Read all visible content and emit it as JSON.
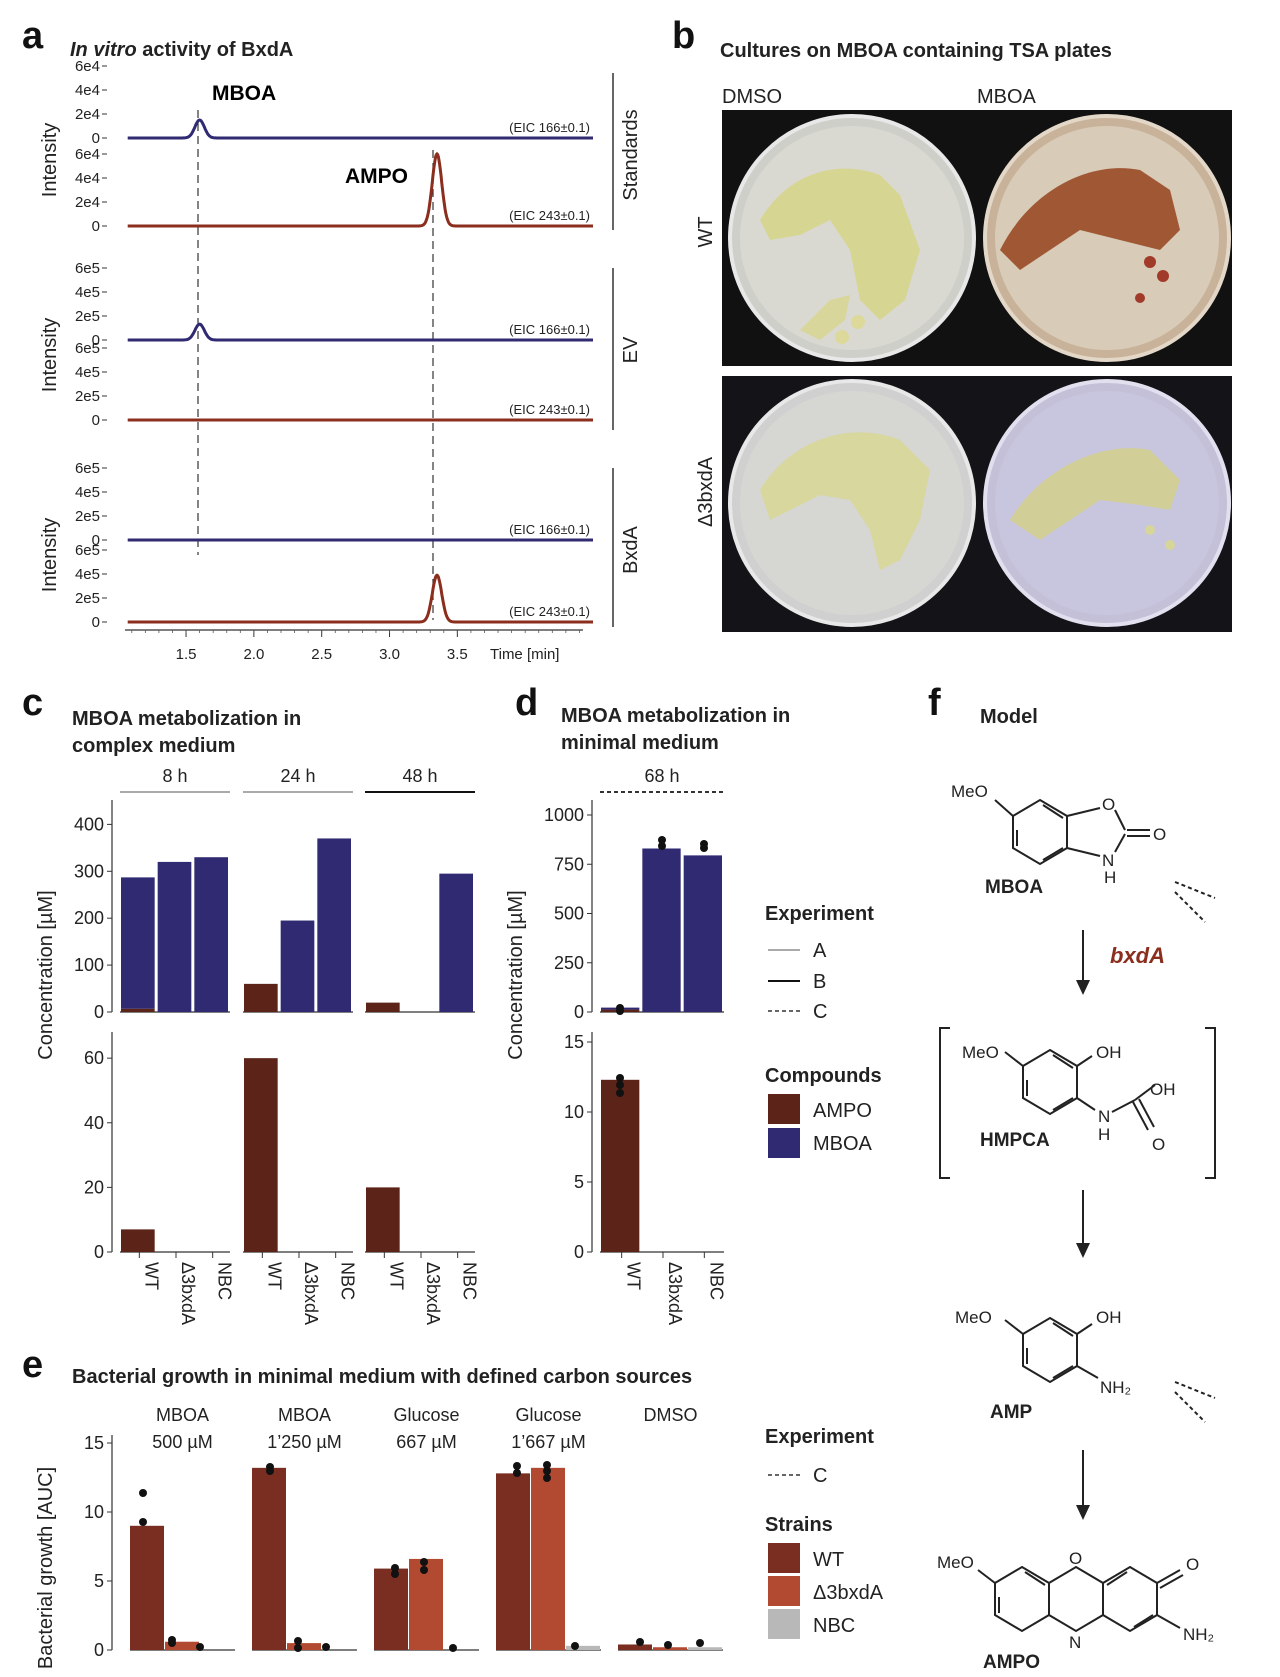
{
  "colors": {
    "mboa": "#2f2a72",
    "ampo": "#8b2e1e",
    "wt": "#7a2e22",
    "d3bxda": "#b24a32",
    "nbc": "#b8b8b8",
    "bar_ampo": "#5c2418",
    "bar_mboa": "#2f2a72"
  },
  "panel_a": {
    "label": "a",
    "title_italic": "In vitro",
    "title_rest": " activity of BxdA",
    "mboa_label": "MBOA",
    "ampo_label": "AMPO",
    "ylabel": "Intensity",
    "groups": [
      {
        "name": "Standards",
        "yticks": [
          "6e4",
          "4e4",
          "2e4",
          "0"
        ],
        "traces": [
          {
            "eic": "(EIC 166±0.1)",
            "compound": "mboa",
            "peak_time": 1.6,
            "peak_height": 0.25
          },
          {
            "eic": "(EIC 243±0.1)",
            "compound": "ampo",
            "peak_time": 3.35,
            "peak_height": 1.0
          }
        ]
      },
      {
        "name": "EV",
        "yticks": [
          "6e5",
          "4e5",
          "2e5",
          "0"
        ],
        "traces": [
          {
            "eic": "(EIC 166±0.1)",
            "compound": "mboa",
            "peak_time": 1.6,
            "peak_height": 0.22
          },
          {
            "eic": "(EIC 243±0.1)",
            "compound": "ampo",
            "peak_time": 3.35,
            "peak_height": 0
          }
        ]
      },
      {
        "name": "BxdA",
        "yticks": [
          "6e5",
          "4e5",
          "2e5",
          "0"
        ],
        "traces": [
          {
            "eic": "(EIC 166±0.1)",
            "compound": "mboa",
            "peak_time": 1.6,
            "peak_height": 0
          },
          {
            "eic": "(EIC 243±0.1)",
            "compound": "ampo",
            "peak_time": 3.35,
            "peak_height": 0.65
          }
        ]
      }
    ],
    "xticks": [
      "1.5",
      "2.0",
      "2.5",
      "3.0",
      "3.5"
    ],
    "xlabel": "Time [min]"
  },
  "panel_b": {
    "label": "b",
    "title": "Cultures on MBOA containing TSA plates",
    "col_labels": [
      "DMSO",
      "MBOA"
    ],
    "row_labels": [
      "WT",
      "Δ3bxdA"
    ]
  },
  "panel_c": {
    "label": "c",
    "title_line1": "MBOA metabolization in",
    "title_line2": "complex medium",
    "ylabel": "Concentration [µM]",
    "chart_data": {
      "type": "bar",
      "timepoints": [
        "8 h",
        "24 h",
        "48 h"
      ],
      "categories": [
        "WT",
        "Δ3bxdA",
        "NBC"
      ],
      "series": [
        {
          "name": "AMPO",
          "values": [
            [
              7,
              0,
              0
            ],
            [
              60,
              0,
              0
            ],
            [
              20,
              0,
              0
            ]
          ]
        },
        {
          "name": "MBOA",
          "values": [
            [
              280,
              320,
              330
            ],
            [
              0,
              195,
              370
            ],
            [
              0,
              0,
              295
            ]
          ]
        }
      ],
      "upper_yticks": [
        "400",
        "300",
        "200",
        "100",
        "0"
      ],
      "upper_ylim": [
        0,
        420
      ],
      "lower_yticks": [
        "60",
        "40",
        "20",
        "0"
      ],
      "lower_ylim": [
        0,
        65
      ]
    }
  },
  "panel_d": {
    "label": "d",
    "title_line1": "MBOA metabolization in",
    "title_line2": "minimal medium",
    "ylabel": "Concentration [µM]",
    "chart_data": {
      "type": "bar",
      "timepoints": [
        "68 h"
      ],
      "categories": [
        "WT",
        "Δ3bxdA",
        "NBC"
      ],
      "series": [
        {
          "name": "AMPO",
          "values": [
            12.3,
            0,
            0
          ]
        },
        {
          "name": "MBOA",
          "values": [
            10,
            830,
            795
          ]
        }
      ],
      "upper_yticks": [
        "1000",
        "750",
        "500",
        "250",
        "0"
      ],
      "upper_ylim": [
        0,
        1000
      ],
      "lower_yticks": [
        "15",
        "10",
        "5",
        "0"
      ],
      "lower_ylim": [
        0,
        15
      ]
    }
  },
  "legend_cd": {
    "experiment_title": "Experiment",
    "experiments": [
      "A",
      "B",
      "C"
    ],
    "compounds_title": "Compounds",
    "compounds": [
      "AMPO",
      "MBOA"
    ]
  },
  "panel_e": {
    "label": "e",
    "title": "Bacterial growth in minimal medium with defined carbon sources",
    "ylabel": "Bacterial growth [AUC]",
    "chart_data": {
      "type": "bar",
      "groups": [
        {
          "line1": "MBOA",
          "line2": "500 µM",
          "values": [
            9,
            0.6,
            0
          ]
        },
        {
          "line1": "MBOA",
          "line2": "1’250 µM",
          "values": [
            13.2,
            0.5,
            0
          ]
        },
        {
          "line1": "Glucose",
          "line2": "667 µM",
          "values": [
            5.9,
            6.6,
            0
          ]
        },
        {
          "line1": "Glucose",
          "line2": "1’667 µM",
          "values": [
            12.8,
            13.2,
            0.3
          ]
        },
        {
          "line1": "DMSO",
          "line2": "",
          "values": [
            0.4,
            0.2,
            0.2
          ]
        }
      ],
      "strains": [
        "WT",
        "Δ3bxdA",
        "NBC"
      ],
      "yticks": [
        "15",
        "10",
        "5",
        "0"
      ],
      "ylim": [
        0,
        15
      ]
    },
    "experiment_title": "Experiment",
    "experiment": "C",
    "strains_title": "Strains"
  },
  "panel_f": {
    "label": "f",
    "title": "Model",
    "gene": "bxdA",
    "compounds": [
      "MBOA",
      "HMPCA",
      "AMP",
      "AMPO"
    ],
    "atoms": {
      "meo": "MeO",
      "o": "O",
      "oh": "OH",
      "h": "H",
      "n": "N",
      "nh": "N",
      "nh2": "NH₂"
    }
  }
}
